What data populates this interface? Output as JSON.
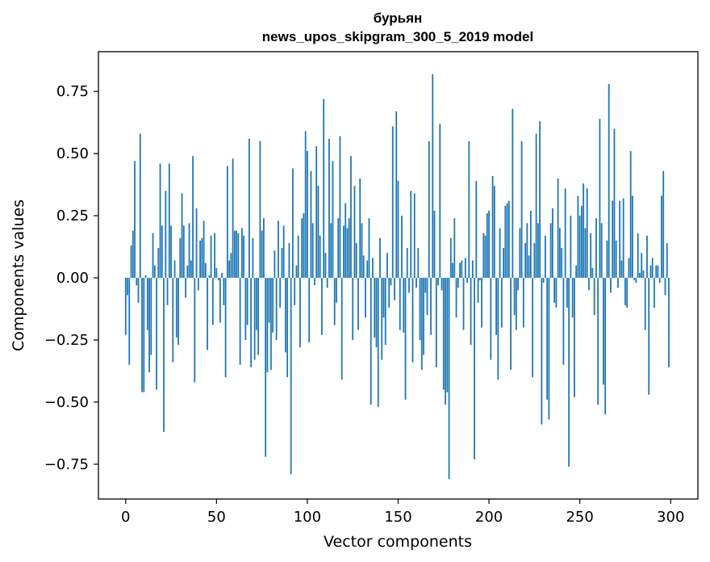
{
  "chart_data": {
    "type": "bar",
    "title": "бурьян",
    "subtitle": "news_upos_skipgram_300_5_2019 model",
    "xlabel": "Vector components",
    "ylabel": "Components values",
    "xlim": [
      -15,
      315
    ],
    "ylim": [
      -0.89,
      0.91
    ],
    "x_ticks": [
      0,
      50,
      100,
      150,
      200,
      250,
      300
    ],
    "y_ticks": [
      -0.75,
      -0.5,
      -0.25,
      0.0,
      0.25,
      0.5,
      0.75
    ],
    "x_tick_labels": [
      "0",
      "50",
      "100",
      "150",
      "200",
      "250",
      "300"
    ],
    "y_tick_labels": [
      "−0.75",
      "−0.50",
      "−0.25",
      "0.00",
      "0.25",
      "0.50",
      "0.75"
    ],
    "bar_color": "#1f77b4",
    "grid": false,
    "values": [
      -0.23,
      -0.07,
      -0.35,
      0.13,
      0.19,
      0.47,
      -0.03,
      -0.1,
      0.58,
      -0.46,
      -0.46,
      0.01,
      -0.21,
      -0.38,
      -0.31,
      0.18,
      0.05,
      -0.45,
      0.12,
      0.46,
      0.21,
      -0.62,
      0.35,
      -0.11,
      0.46,
      0.21,
      -0.34,
      0.07,
      -0.24,
      -0.27,
      0.16,
      0.34,
      0.21,
      -0.08,
      0.05,
      0.22,
      0.07,
      0.49,
      -0.42,
      0.28,
      -0.05,
      0.15,
      0.16,
      0.23,
      0.06,
      -0.29,
      0.01,
      0.17,
      -0.19,
      0.18,
      0.04,
      -0.01,
      -0.18,
      0.02,
      -0.11,
      -0.4,
      0.45,
      0.07,
      0.1,
      0.48,
      0.19,
      0.19,
      0.18,
      -0.35,
      0.2,
      0.17,
      -0.25,
      -0.19,
      0.56,
      -0.36,
      0.16,
      -0.33,
      -0.21,
      -0.31,
      0.55,
      0.19,
      0.24,
      -0.72,
      -0.38,
      -0.18,
      -0.37,
      -0.22,
      0.11,
      -0.25,
      0.23,
      -0.12,
      0.12,
      0.21,
      -0.3,
      -0.4,
      0.14,
      -0.79,
      0.44,
      -0.11,
      0.05,
      0.17,
      -0.28,
      0.24,
      0.26,
      0.59,
      0.51,
      -0.26,
      0.43,
      0.22,
      -0.03,
      0.53,
      0.37,
      0.17,
      -0.23,
      0.72,
      0.1,
      -0.04,
      0.56,
      0.22,
      0.47,
      -0.19,
      -0.1,
      0.24,
      0.57,
      -0.41,
      0.21,
      0.3,
      0.2,
      0.24,
      0.49,
      -0.25,
      0.37,
      0.14,
      -0.21,
      0.4,
      0.22,
      0.09,
      -0.16,
      0.07,
      0.24,
      -0.51,
      0.08,
      -0.24,
      -0.28,
      -0.52,
      0.16,
      -0.33,
      -0.16,
      -0.27,
      0.1,
      -0.12,
      -0.03,
      0.61,
      -0.09,
      0.67,
      0.39,
      -0.21,
      0.25,
      -0.22,
      -0.49,
      0.12,
      -0.06,
      0.35,
      -0.34,
      0.34,
      -0.04,
      0.12,
      -0.25,
      -0.37,
      -0.31,
      -0.06,
      -0.15,
      0.55,
      -0.23,
      0.82,
      0.27,
      -0.36,
      -0.03,
      0.62,
      -0.05,
      -0.45,
      -0.51,
      -0.46,
      -0.81,
      0.16,
      0.06,
      0.24,
      -0.16,
      -0.04,
      0.06,
      0.07,
      -0.21,
      0.08,
      -0.02,
      0.55,
      -0.27,
      0.07,
      -0.73,
      0.39,
      -0.1,
      -0.01,
      -0.2,
      0.18,
      0.17,
      0.26,
      0.27,
      -0.33,
      0.41,
      0.37,
      -0.23,
      -0.41,
      0.2,
      -0.2,
      0.12,
      0.29,
      0.3,
      0.31,
      -0.37,
      0.68,
      -0.15,
      -0.21,
      -0.05,
      0.2,
      0.55,
      -0.2,
      0.14,
      0.22,
      0.09,
      0.27,
      -0.4,
      0.14,
      0.58,
      0.22,
      0.63,
      -0.59,
      -0.02,
      0.17,
      -0.49,
      -0.57,
      0.22,
      0.28,
      -0.1,
      -0.12,
      0.4,
      0.2,
      0.12,
      -0.35,
      0.36,
      -0.12,
      -0.76,
      0.25,
      -0.16,
      -0.48,
      0.05,
      0.33,
      0.25,
      0.29,
      0.38,
      0.2,
      0.36,
      -0.05,
      0.18,
      0.04,
      -0.15,
      0.24,
      -0.51,
      0.64,
      0.22,
      -0.43,
      -0.55,
      0.15,
      0.78,
      -0.06,
      0.31,
      0.6,
      0.15,
      -0.04,
      0.31,
      0.07,
      0.32,
      -0.11,
      -0.12,
      0.08,
      0.51,
      0.33,
      -0.01,
      -0.02,
      0.18,
      0.02,
      0.1,
      0.03,
      -0.21,
      0.17,
      -0.47,
      0.05,
      0.08,
      -0.12,
      0.05,
      0.05,
      -0.02,
      0.33,
      0.43,
      -0.07,
      0.14,
      -0.36
    ]
  }
}
